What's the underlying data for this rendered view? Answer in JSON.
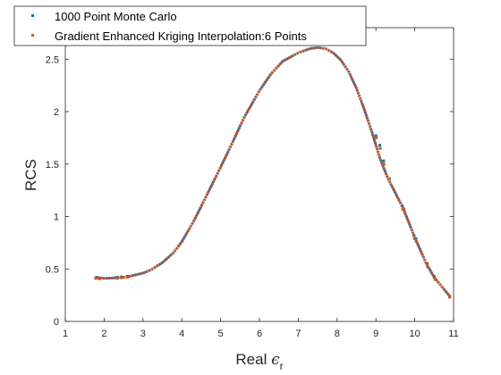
{
  "chart_data": {
    "type": "scatter",
    "title": "",
    "xlabel_main": "Real ",
    "xlabel_symbol": "ϵ",
    "xlabel_sub": "r",
    "ylabel": "RCS",
    "xlim": [
      1,
      11
    ],
    "ylim": [
      0,
      2.8
    ],
    "xticks": [
      1,
      2,
      3,
      4,
      5,
      6,
      7,
      8,
      9,
      10,
      11
    ],
    "yticks": [
      0,
      0.5,
      1,
      1.5,
      2,
      2.5
    ],
    "ytick_labels": [
      "0",
      "0.5",
      "1",
      "1.5",
      "2",
      "2.5"
    ],
    "grid": false,
    "legend_placement": "top-left",
    "series": [
      {
        "name": "1000 Point Monte Carlo",
        "color": "#0072BD",
        "curve": [
          [
            1.8,
            0.42
          ],
          [
            2.0,
            0.41
          ],
          [
            2.3,
            0.415
          ],
          [
            2.6,
            0.425
          ],
          [
            3.0,
            0.46
          ],
          [
            3.2,
            0.49
          ],
          [
            3.5,
            0.56
          ],
          [
            3.8,
            0.66
          ],
          [
            4.0,
            0.76
          ],
          [
            4.3,
            0.95
          ],
          [
            4.6,
            1.17
          ],
          [
            5.0,
            1.47
          ],
          [
            5.3,
            1.7
          ],
          [
            5.6,
            1.94
          ],
          [
            6.0,
            2.2
          ],
          [
            6.3,
            2.36
          ],
          [
            6.6,
            2.48
          ],
          [
            7.0,
            2.56
          ],
          [
            7.3,
            2.6
          ],
          [
            7.5,
            2.61
          ],
          [
            7.7,
            2.6
          ],
          [
            7.9,
            2.56
          ],
          [
            8.1,
            2.49
          ],
          [
            8.3,
            2.38
          ],
          [
            8.5,
            2.22
          ],
          [
            8.7,
            2.02
          ],
          [
            8.9,
            1.8
          ],
          [
            9.1,
            1.56
          ],
          [
            9.3,
            1.37
          ],
          [
            9.7,
            1.08
          ],
          [
            10.0,
            0.8
          ],
          [
            10.3,
            0.55
          ],
          [
            10.5,
            0.42
          ],
          [
            10.9,
            0.24
          ]
        ],
        "points": [
          [
            1.8,
            0.42
          ],
          [
            1.85,
            0.415
          ],
          [
            2.33,
            0.42
          ],
          [
            2.45,
            0.425
          ],
          [
            2.6,
            0.43
          ],
          [
            10.32,
            0.55
          ],
          [
            10.5,
            0.43
          ],
          [
            10.9,
            0.24
          ],
          [
            9.68,
            1.1
          ],
          [
            9.72,
            1.07
          ],
          [
            9.98,
            0.82
          ],
          [
            10.03,
            0.79
          ],
          [
            9.0,
            1.77
          ],
          [
            9.1,
            1.68
          ],
          [
            9.2,
            1.53
          ]
        ]
      },
      {
        "name": "Gradient Enhanced Kriging Interpolation:6 Points",
        "color": "#D95319",
        "curve": [
          [
            1.8,
            0.42
          ],
          [
            2.0,
            0.41
          ],
          [
            2.3,
            0.415
          ],
          [
            2.6,
            0.425
          ],
          [
            3.0,
            0.46
          ],
          [
            3.2,
            0.49
          ],
          [
            3.5,
            0.56
          ],
          [
            3.8,
            0.66
          ],
          [
            4.0,
            0.76
          ],
          [
            4.3,
            0.95
          ],
          [
            4.6,
            1.17
          ],
          [
            5.0,
            1.47
          ],
          [
            5.3,
            1.7
          ],
          [
            5.6,
            1.94
          ],
          [
            6.0,
            2.2
          ],
          [
            6.3,
            2.36
          ],
          [
            6.6,
            2.48
          ],
          [
            7.0,
            2.56
          ],
          [
            7.3,
            2.6
          ],
          [
            7.5,
            2.61
          ],
          [
            7.7,
            2.6
          ],
          [
            7.9,
            2.56
          ],
          [
            8.1,
            2.49
          ],
          [
            8.3,
            2.38
          ],
          [
            8.5,
            2.22
          ],
          [
            8.7,
            2.02
          ],
          [
            8.9,
            1.8
          ],
          [
            9.1,
            1.56
          ],
          [
            9.3,
            1.37
          ],
          [
            9.7,
            1.08
          ],
          [
            10.0,
            0.8
          ],
          [
            10.3,
            0.55
          ],
          [
            10.5,
            0.42
          ],
          [
            10.9,
            0.24
          ]
        ],
        "points": [
          [
            1.78,
            0.41
          ],
          [
            1.88,
            0.405
          ],
          [
            2.34,
            0.41
          ],
          [
            2.45,
            0.415
          ],
          [
            2.6,
            0.42
          ],
          [
            10.33,
            0.52
          ],
          [
            10.52,
            0.4
          ],
          [
            10.9,
            0.23
          ],
          [
            9.69,
            1.07
          ],
          [
            9.74,
            1.04
          ],
          [
            9.99,
            0.79
          ],
          [
            10.04,
            0.76
          ],
          [
            9.01,
            1.75
          ],
          [
            9.11,
            1.65
          ],
          [
            9.21,
            1.5
          ],
          [
            9.35,
            1.36
          ]
        ]
      }
    ]
  }
}
